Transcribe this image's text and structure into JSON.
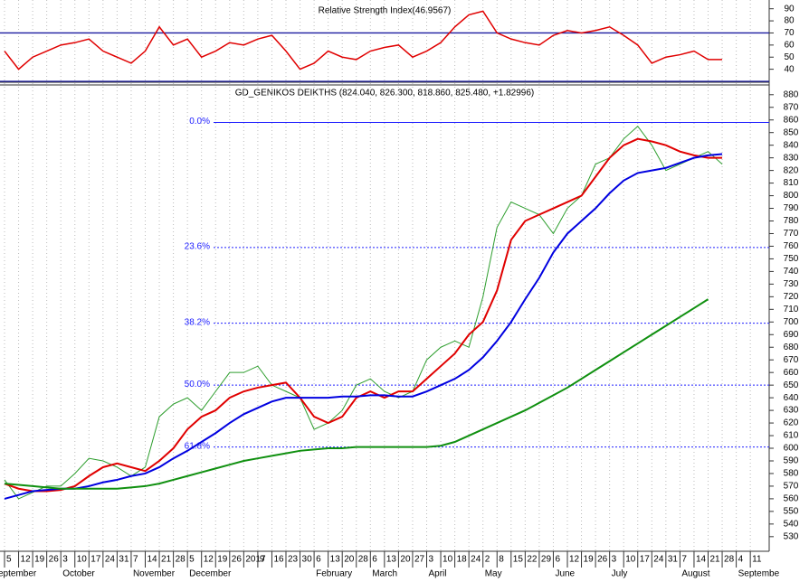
{
  "chart_data": [
    {
      "type": "line",
      "title": "Relative Strength Index(46.9567)",
      "color": "#e00000",
      "level_color": "#1a1aa0",
      "ylim": [
        30,
        95
      ],
      "yticks": [
        40,
        50,
        60,
        70,
        80,
        90
      ],
      "levels": [
        70,
        30
      ],
      "values": [
        55,
        40,
        50,
        55,
        60,
        62,
        65,
        55,
        50,
        45,
        55,
        75,
        60,
        65,
        50,
        55,
        62,
        60,
        65,
        68,
        55,
        40,
        45,
        55,
        50,
        48,
        55,
        58,
        60,
        50,
        55,
        62,
        75,
        85,
        88,
        70,
        65,
        62,
        60,
        68,
        72,
        70,
        72,
        75,
        68,
        60,
        45,
        50,
        52,
        55,
        48,
        48,
        null,
        null
      ]
    },
    {
      "type": "line",
      "title": "GD_GENIKOS DEIKTHS (824.040, 826.300, 818.860, 825.480, +1.82996)",
      "categories": [
        "5",
        "12",
        "19",
        "26",
        "3",
        "10",
        "17",
        "24",
        "31",
        "7",
        "14",
        "21",
        "28",
        "5",
        "12",
        "19",
        "26",
        "2017",
        "9",
        "16",
        "23",
        "30",
        "6",
        "13",
        "20",
        "28",
        "6",
        "13",
        "20",
        "27",
        "3",
        "10",
        "18",
        "24",
        "2",
        "8",
        "15",
        "22",
        "29",
        "6",
        "12",
        "19",
        "26",
        "3",
        "10",
        "17",
        "24",
        "31",
        "7",
        "14",
        "21",
        "28",
        "4",
        "11"
      ],
      "month_labels": [
        "eptember",
        null,
        null,
        null,
        "October",
        null,
        null,
        null,
        null,
        "November",
        null,
        null,
        null,
        "December",
        null,
        null,
        null,
        null,
        null,
        null,
        null,
        null,
        "February",
        null,
        null,
        null,
        "March",
        null,
        null,
        null,
        "April",
        null,
        null,
        null,
        "May",
        null,
        null,
        null,
        null,
        "June",
        null,
        null,
        null,
        "July",
        null,
        null,
        null,
        null,
        "August",
        null,
        null,
        null,
        "Septembe",
        null
      ],
      "ylim": [
        522,
        887
      ],
      "yticks": [
        530,
        540,
        550,
        560,
        570,
        580,
        590,
        600,
        610,
        620,
        630,
        640,
        650,
        660,
        670,
        680,
        690,
        700,
        710,
        720,
        730,
        740,
        750,
        760,
        770,
        780,
        790,
        800,
        810,
        820,
        830,
        840,
        850,
        860,
        870,
        880
      ],
      "fib_color": "#2020ff",
      "fib_levels": [
        {
          "label": "0.0%",
          "value": 858
        },
        {
          "label": "23.6%",
          "value": 759
        },
        {
          "label": "38.2%",
          "value": 699
        },
        {
          "label": "50.0%",
          "value": 650
        },
        {
          "label": "61.8%",
          "value": 601
        }
      ],
      "series": [
        {
          "color": "#2e9e2e",
          "values": [
            575,
            560,
            565,
            570,
            570,
            580,
            592,
            590,
            585,
            578,
            585,
            625,
            635,
            640,
            630,
            645,
            660,
            660,
            665,
            650,
            645,
            640,
            615,
            620,
            630,
            650,
            655,
            645,
            640,
            645,
            670,
            680,
            685,
            680,
            720,
            775,
            795,
            790,
            785,
            770,
            790,
            800,
            825,
            830,
            845,
            855,
            840,
            820,
            825,
            830,
            835,
            825,
            null,
            null
          ]
        },
        {
          "color": "#e00000",
          "values": [
            572,
            568,
            566,
            566,
            567,
            570,
            578,
            585,
            588,
            585,
            582,
            590,
            600,
            615,
            625,
            630,
            640,
            645,
            648,
            650,
            652,
            640,
            625,
            620,
            625,
            640,
            645,
            640,
            645,
            645,
            655,
            665,
            675,
            690,
            700,
            725,
            765,
            780,
            785,
            790,
            795,
            800,
            815,
            830,
            840,
            845,
            843,
            840,
            835,
            832,
            830,
            830,
            null,
            null
          ]
        },
        {
          "color": "#0000e0",
          "values": [
            560,
            563,
            566,
            567,
            568,
            568,
            570,
            573,
            575,
            578,
            580,
            585,
            592,
            598,
            605,
            612,
            620,
            627,
            632,
            637,
            640,
            640,
            640,
            640,
            641,
            641,
            642,
            642,
            641,
            641,
            645,
            650,
            655,
            662,
            672,
            685,
            700,
            718,
            735,
            755,
            770,
            780,
            790,
            802,
            812,
            818,
            820,
            822,
            826,
            830,
            832,
            833,
            null,
            null
          ]
        },
        {
          "color": "#109010",
          "values": [
            572,
            571,
            570,
            569,
            568,
            568,
            568,
            568,
            568,
            569,
            570,
            572,
            575,
            578,
            581,
            584,
            587,
            590,
            592,
            594,
            596,
            598,
            599,
            600,
            600,
            601,
            601,
            601,
            601,
            601,
            601,
            602,
            605,
            610,
            615,
            620,
            625,
            630,
            636,
            642,
            648,
            655,
            662,
            669,
            676,
            683,
            690,
            697,
            704,
            711,
            718,
            null,
            null,
            null
          ]
        }
      ]
    }
  ]
}
